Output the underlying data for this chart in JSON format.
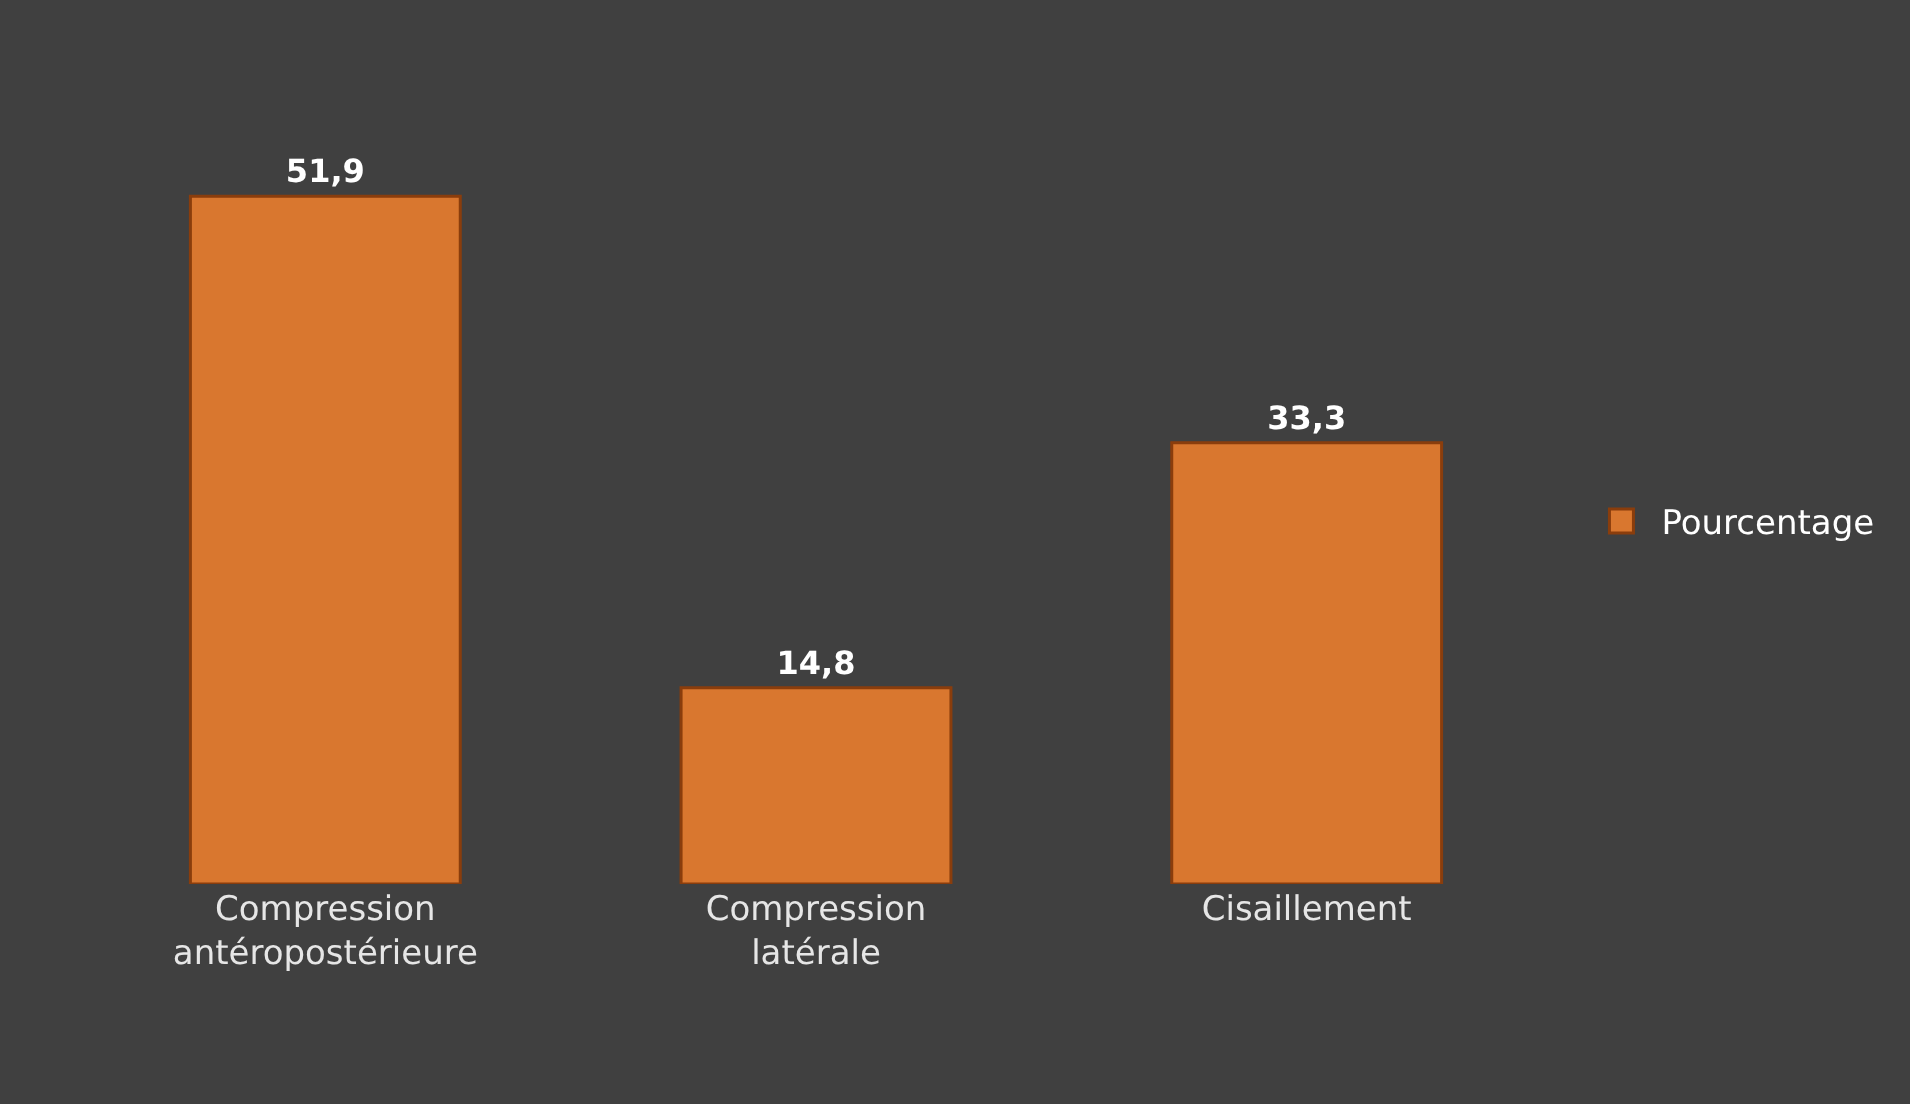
{
  "chart_data": {
    "type": "bar",
    "categories": [
      "Compression antéropostérieure",
      "Compression latérale",
      "Cisaillement"
    ],
    "series": [
      {
        "name": "Pourcentage",
        "color": "#d9772f",
        "values": [
          51.9,
          14.8,
          33.3
        ],
        "value_labels": [
          "51,9",
          "14,8",
          "33,3"
        ]
      }
    ],
    "legend": "right",
    "grid": false
  }
}
